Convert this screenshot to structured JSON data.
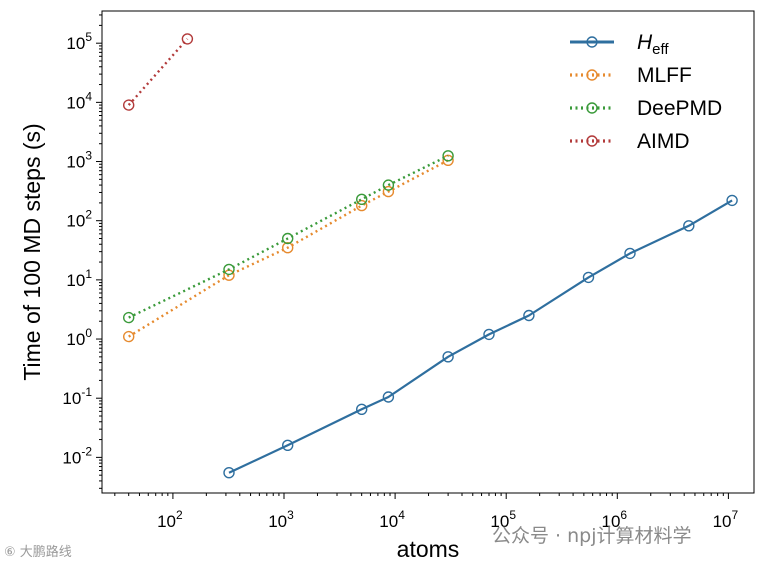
{
  "chart_data": {
    "type": "line",
    "xscale": "log",
    "yscale": "log",
    "xlim": [
      23,
      17000000
    ],
    "ylim": [
      0.0025,
      350000
    ],
    "xlabel": "atoms",
    "ylabel": "Time of 100 MD steps (s)",
    "x_ticks": [
      {
        "value": 100,
        "base": "10",
        "exp": "2"
      },
      {
        "value": 1000,
        "base": "10",
        "exp": "3"
      },
      {
        "value": 10000,
        "base": "10",
        "exp": "4"
      },
      {
        "value": 100000,
        "base": "10",
        "exp": "5"
      },
      {
        "value": 1000000,
        "base": "10",
        "exp": "6"
      },
      {
        "value": 10000000,
        "base": "10",
        "exp": "7"
      }
    ],
    "y_ticks": [
      {
        "value": 0.01,
        "base": "10",
        "exp": "-2"
      },
      {
        "value": 0.1,
        "base": "10",
        "exp": "-1"
      },
      {
        "value": 1,
        "base": "10",
        "exp": "0"
      },
      {
        "value": 10,
        "base": "10",
        "exp": "1"
      },
      {
        "value": 100,
        "base": "10",
        "exp": "2"
      },
      {
        "value": 1000,
        "base": "10",
        "exp": "3"
      },
      {
        "value": 10000,
        "base": "10",
        "exp": "4"
      },
      {
        "value": 100000,
        "base": "10",
        "exp": "5"
      }
    ],
    "legend_position": "top-right",
    "series": [
      {
        "name": "H_eff",
        "label_main": "H",
        "label_sub": "eff",
        "color": "#2f6f9f",
        "style": "solid",
        "x": [
          320,
          1080,
          5000,
          8700,
          30000,
          70000,
          160000,
          550000,
          1300000,
          4400000,
          10800000
        ],
        "y": [
          0.0055,
          0.016,
          0.065,
          0.105,
          0.5,
          1.2,
          2.5,
          11,
          28,
          82,
          220
        ]
      },
      {
        "name": "MLFF",
        "color": "#e68a2e",
        "style": "dotted",
        "x": [
          40,
          320,
          1080,
          5000,
          8700,
          30000
        ],
        "y": [
          1.1,
          12,
          35,
          180,
          310,
          1050
        ]
      },
      {
        "name": "DeePMD",
        "color": "#3a9a3a",
        "style": "dotted",
        "x": [
          40,
          320,
          1080,
          5000,
          8700,
          30000
        ],
        "y": [
          2.3,
          15,
          50,
          230,
          400,
          1250
        ]
      },
      {
        "name": "AIMD",
        "color": "#b23a3a",
        "style": "dotted",
        "x": [
          40,
          135
        ],
        "y": [
          9000,
          118000
        ]
      }
    ]
  },
  "watermarks": {
    "left": "⑥ 大鹏路线",
    "right": "公众号 · npj计算材料学"
  }
}
